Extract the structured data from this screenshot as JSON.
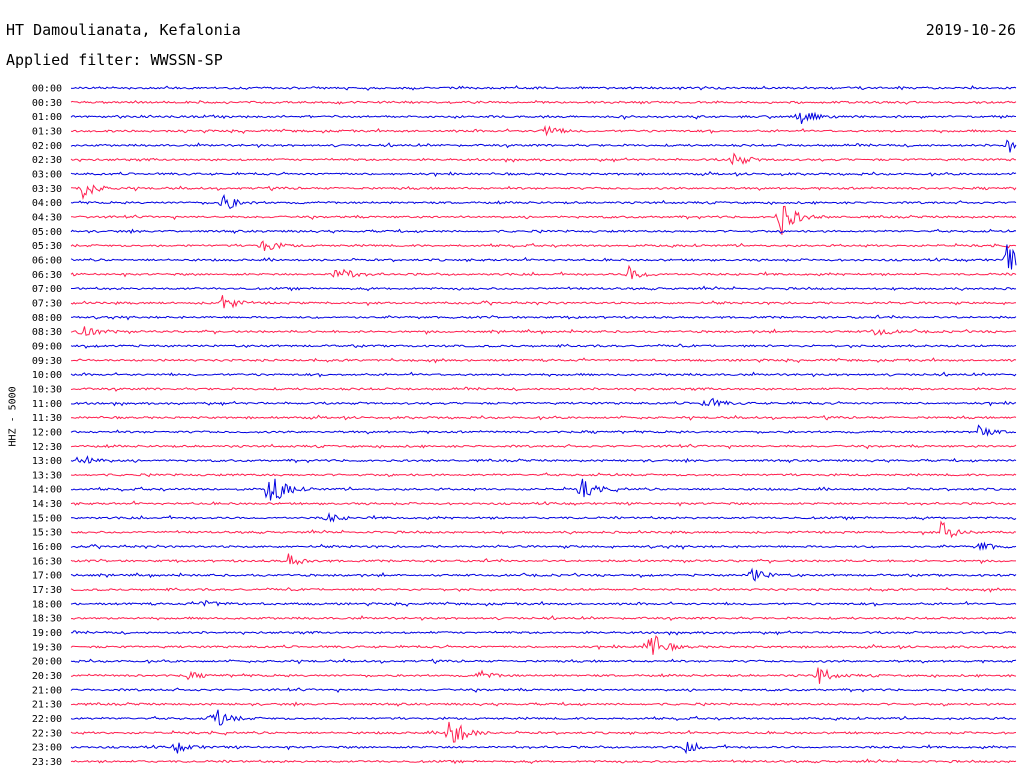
{
  "header": {
    "station": "HT Damoulianata, Kefalonia",
    "date": "2019-10-26",
    "filter": "Applied filter: WWSSN-SP"
  },
  "chart_data": {
    "type": "line",
    "ylabel": "HHZ - 5000",
    "colors": [
      "#0000e0",
      "#ff1f4f"
    ],
    "rows": [
      "00:00",
      "00:30",
      "01:00",
      "01:30",
      "02:00",
      "02:30",
      "03:00",
      "03:30",
      "04:00",
      "04:30",
      "05:00",
      "05:30",
      "06:00",
      "06:30",
      "07:00",
      "07:30",
      "08:00",
      "08:30",
      "09:00",
      "09:30",
      "10:00",
      "10:30",
      "11:00",
      "11:30",
      "12:00",
      "12:30",
      "13:00",
      "13:30",
      "14:00",
      "14:30",
      "15:00",
      "15:30",
      "16:00",
      "16:30",
      "17:00",
      "17:30",
      "18:00",
      "18:30",
      "19:00",
      "19:30",
      "20:00",
      "20:30",
      "21:00",
      "21:30",
      "22:00",
      "22:30",
      "23:00",
      "23:30"
    ],
    "events": [
      {
        "row": "01:00",
        "t": 0.77,
        "amp": 1.2
      },
      {
        "row": "01:30",
        "t": 0.5,
        "amp": 0.7
      },
      {
        "row": "02:00",
        "t": 0.99,
        "amp": 1.0
      },
      {
        "row": "02:30",
        "t": 0.7,
        "amp": 0.9
      },
      {
        "row": "03:30",
        "t": 0.01,
        "amp": 1.4
      },
      {
        "row": "04:00",
        "t": 0.16,
        "amp": 1.2
      },
      {
        "row": "04:30",
        "t": 0.75,
        "amp": 2.6
      },
      {
        "row": "05:30",
        "t": 0.2,
        "amp": 1.0
      },
      {
        "row": "06:00",
        "t": 0.99,
        "amp": 1.8
      },
      {
        "row": "06:30",
        "t": 0.28,
        "amp": 1.2
      },
      {
        "row": "06:30",
        "t": 0.59,
        "amp": 0.9
      },
      {
        "row": "07:30",
        "t": 0.16,
        "amp": 1.0
      },
      {
        "row": "08:30",
        "t": 0.01,
        "amp": 1.1
      },
      {
        "row": "08:30",
        "t": 0.85,
        "amp": 0.6
      },
      {
        "row": "11:00",
        "t": 0.67,
        "amp": 0.9
      },
      {
        "row": "12:00",
        "t": 0.96,
        "amp": 0.7
      },
      {
        "row": "13:00",
        "t": 0.01,
        "amp": 1.0
      },
      {
        "row": "14:00",
        "t": 0.21,
        "amp": 2.6
      },
      {
        "row": "14:00",
        "t": 0.54,
        "amp": 1.2
      },
      {
        "row": "15:00",
        "t": 0.27,
        "amp": 0.6
      },
      {
        "row": "15:30",
        "t": 0.92,
        "amp": 1.3
      },
      {
        "row": "16:00",
        "t": 0.96,
        "amp": 0.7
      },
      {
        "row": "16:30",
        "t": 0.23,
        "amp": 0.8
      },
      {
        "row": "17:00",
        "t": 0.72,
        "amp": 1.0
      },
      {
        "row": "18:00",
        "t": 0.14,
        "amp": 0.5
      },
      {
        "row": "19:30",
        "t": 0.61,
        "amp": 2.4
      },
      {
        "row": "20:30",
        "t": 0.12,
        "amp": 0.5
      },
      {
        "row": "20:30",
        "t": 0.43,
        "amp": 0.6
      },
      {
        "row": "20:30",
        "t": 0.79,
        "amp": 1.1
      },
      {
        "row": "22:00",
        "t": 0.15,
        "amp": 1.5
      },
      {
        "row": "22:30",
        "t": 0.4,
        "amp": 2.6
      },
      {
        "row": "23:00",
        "t": 0.11,
        "amp": 0.8
      },
      {
        "row": "23:00",
        "t": 0.65,
        "amp": 0.7
      }
    ]
  }
}
